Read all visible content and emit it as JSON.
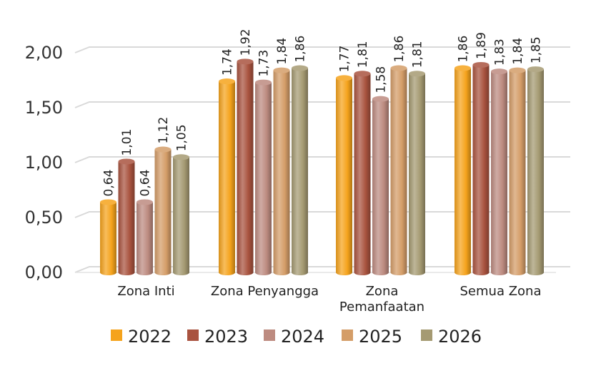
{
  "chart_data": {
    "type": "bar",
    "categories": [
      "Zona Inti",
      "Zona Penyangga",
      "Zona Pemanfaatan",
      "Semua Zona"
    ],
    "category_lines": [
      [
        "Zona Inti"
      ],
      [
        "Zona Penyangga"
      ],
      [
        "Zona",
        "Pemanfaatan"
      ],
      [
        "Semua Zona"
      ]
    ],
    "series": [
      {
        "name": "2022",
        "color": "#f5a31c",
        "values": [
          0.64,
          1.74,
          1.77,
          1.86
        ],
        "labels": [
          "0,64",
          "1,74",
          "1,77",
          "1,86"
        ]
      },
      {
        "name": "2023",
        "color": "#a9533f",
        "values": [
          1.01,
          1.92,
          1.81,
          1.89
        ],
        "labels": [
          "1,01",
          "1,92",
          "1,81",
          "1,89"
        ]
      },
      {
        "name": "2024",
        "color": "#bd8b80",
        "values": [
          0.64,
          1.73,
          1.58,
          1.83
        ],
        "labels": [
          "0,64",
          "1,73",
          "1,58",
          "1,83"
        ]
      },
      {
        "name": "2025",
        "color": "#d49d68",
        "values": [
          1.12,
          1.84,
          1.86,
          1.84
        ],
        "labels": [
          "1,12",
          "1,84",
          "1,86",
          "1,84"
        ]
      },
      {
        "name": "2026",
        "color": "#a59a72",
        "values": [
          1.05,
          1.86,
          1.81,
          1.85
        ],
        "labels": [
          "1,05",
          "1,86",
          "1,81",
          "1,85"
        ]
      }
    ],
    "yticks": [
      0,
      0.5,
      1.0,
      1.5,
      2.0
    ],
    "ytick_labels": [
      "0,00",
      "0,50",
      "1,00",
      "1,50",
      "2,00"
    ],
    "ylim": [
      0,
      2.0
    ],
    "grid": true,
    "legend": "bottom"
  }
}
